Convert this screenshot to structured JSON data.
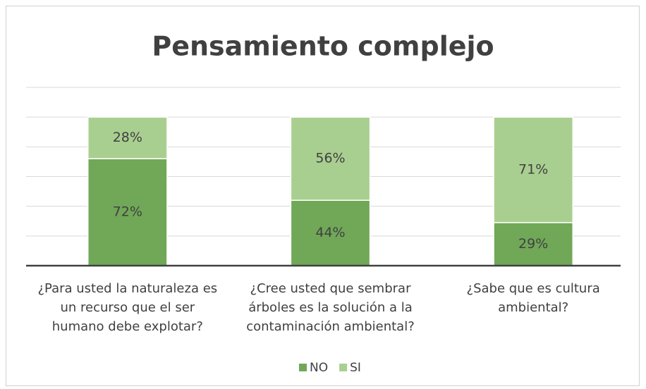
{
  "chart_data": {
    "type": "stacked_bar",
    "title": "Pensamiento complejo",
    "categories": [
      "¿Para usted la naturaleza es un recurso que el ser humano debe explotar?",
      "¿Cree usted que sembrar árboles es la solución a la contaminación ambiental?",
      "¿Sabe que es cultura ambiental?"
    ],
    "series": [
      {
        "name": "NO",
        "color": "#70a857",
        "values": [
          72,
          44,
          29
        ],
        "value_labels": [
          "72%",
          "44%",
          "29%"
        ]
      },
      {
        "name": "SI",
        "color": "#a9cf90",
        "values": [
          28,
          56,
          71
        ],
        "value_labels": [
          "28%",
          "56%",
          "71%"
        ]
      }
    ],
    "ylim": [
      0,
      120
    ],
    "yticks": [
      0,
      20,
      40,
      60,
      80,
      100,
      120
    ],
    "grid": true,
    "ytick_labels_shown": false,
    "legend": "bottom"
  }
}
